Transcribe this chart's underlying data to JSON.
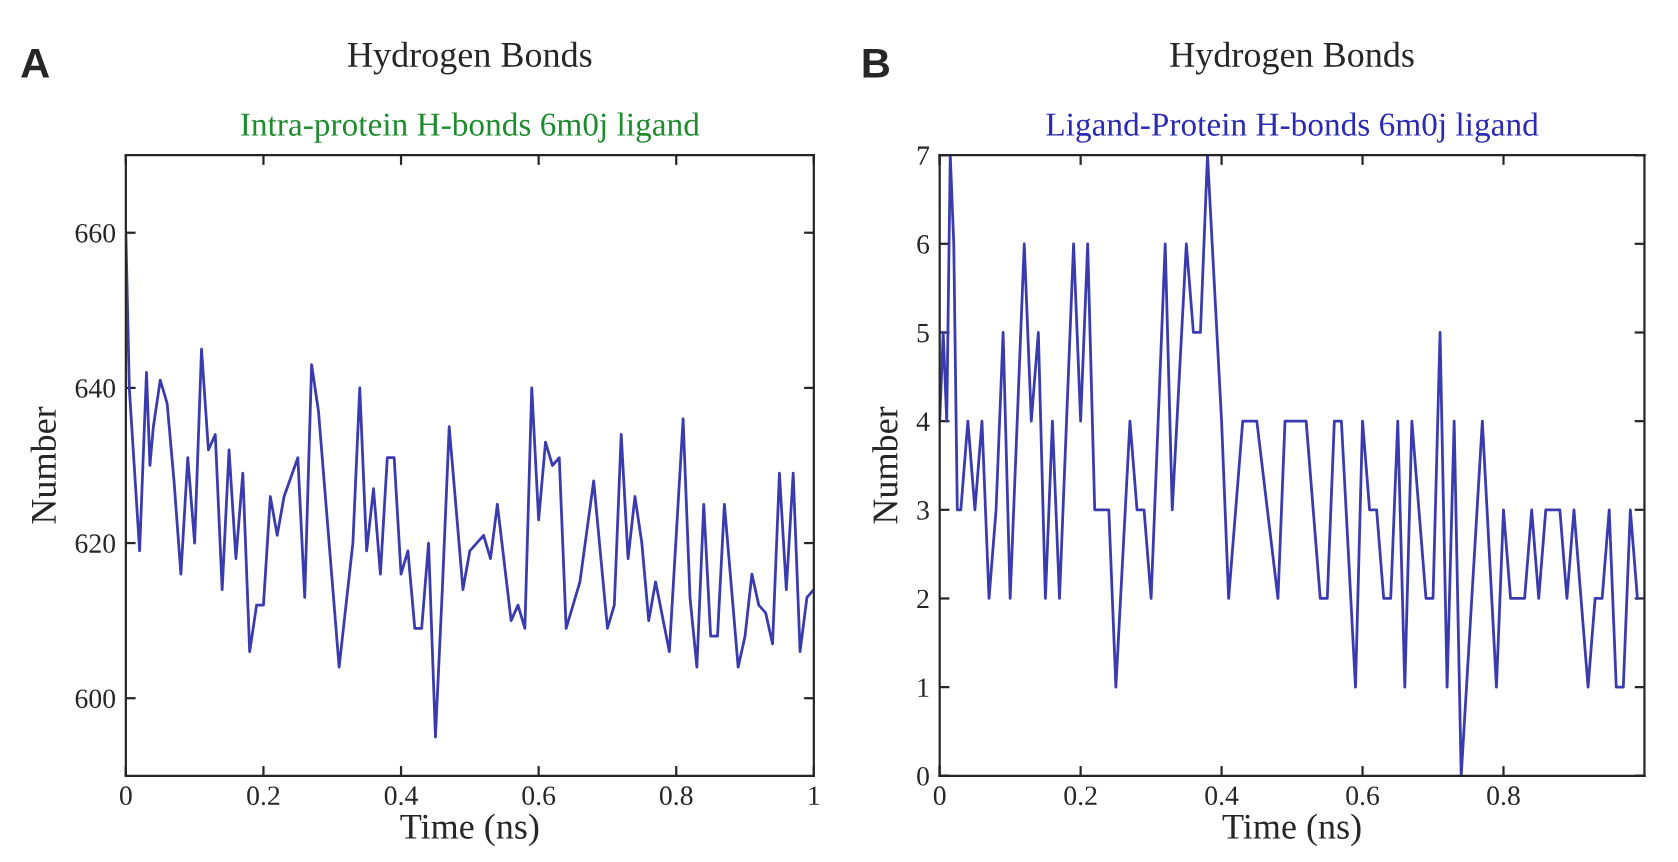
{
  "chart_data": [
    {
      "type": "line",
      "title": "Hydrogen Bonds",
      "subtitle": "Intra-protein H-bonds 6m0j ligand",
      "xlabel": "Time (ns)",
      "ylabel": "Number",
      "annotations": [
        "A"
      ],
      "xlim": [
        0,
        1
      ],
      "ylim": [
        590,
        670
      ],
      "xticks": [
        0,
        0.2,
        0.4,
        0.6,
        0.8,
        1
      ],
      "yticks": [
        600,
        620,
        640,
        660
      ],
      "grid": false,
      "legend": false,
      "series": [
        {
          "color": "#3b3bb0",
          "x": [
            0,
            0.005,
            0.015,
            0.02,
            0.03,
            0.035,
            0.04,
            0.05,
            0.06,
            0.07,
            0.08,
            0.09,
            0.1,
            0.11,
            0.12,
            0.13,
            0.14,
            0.15,
            0.16,
            0.17,
            0.18,
            0.19,
            0.2,
            0.21,
            0.22,
            0.23,
            0.25,
            0.26,
            0.27,
            0.28,
            0.31,
            0.33,
            0.34,
            0.35,
            0.36,
            0.37,
            0.38,
            0.39,
            0.4,
            0.41,
            0.42,
            0.43,
            0.44,
            0.45,
            0.46,
            0.47,
            0.49,
            0.5,
            0.52,
            0.53,
            0.54,
            0.56,
            0.57,
            0.58,
            0.59,
            0.6,
            0.61,
            0.62,
            0.63,
            0.64,
            0.66,
            0.68,
            0.7,
            0.71,
            0.72,
            0.73,
            0.74,
            0.75,
            0.76,
            0.77,
            0.79,
            0.81,
            0.82,
            0.83,
            0.84,
            0.85,
            0.86,
            0.87,
            0.89,
            0.9,
            0.91,
            0.92,
            0.93,
            0.94,
            0.95,
            0.96,
            0.97,
            0.98,
            0.99,
            1.0
          ],
          "values": [
            660,
            640,
            626,
            619,
            642,
            630,
            635,
            641,
            638,
            628,
            616,
            631,
            620,
            645,
            632,
            634,
            614,
            632,
            618,
            629,
            606,
            612,
            612,
            626,
            621,
            626,
            631,
            613,
            643,
            637,
            604,
            620,
            640,
            619,
            627,
            616,
            631,
            631,
            616,
            619,
            609,
            609,
            620,
            595,
            614,
            635,
            614,
            619,
            621,
            618,
            625,
            610,
            612,
            609,
            640,
            623,
            633,
            630,
            631,
            609,
            615,
            628,
            609,
            612,
            634,
            618,
            626,
            620,
            610,
            615,
            606,
            636,
            613,
            604,
            625,
            608,
            608,
            625,
            604,
            608,
            616,
            612,
            611,
            607,
            629,
            614,
            629,
            606,
            613,
            614
          ]
        }
      ]
    },
    {
      "type": "line",
      "title": "Hydrogen Bonds",
      "subtitle": "Ligand-Protein H-bonds 6m0j ligand",
      "xlabel": "Time (ns)",
      "ylabel": "Number",
      "annotations": [
        "B"
      ],
      "xlim": [
        0,
        1
      ],
      "ylim": [
        0,
        7
      ],
      "xticks": [
        0,
        0.2,
        0.4,
        0.6,
        0.8
      ],
      "yticks": [
        0,
        1,
        2,
        3,
        4,
        5,
        6,
        7
      ],
      "grid": false,
      "legend": false,
      "series": [
        {
          "color": "#3b3bb0",
          "x": [
            0,
            0.005,
            0.01,
            0.015,
            0.02,
            0.025,
            0.03,
            0.04,
            0.05,
            0.06,
            0.07,
            0.08,
            0.09,
            0.1,
            0.12,
            0.13,
            0.14,
            0.15,
            0.16,
            0.17,
            0.19,
            0.2,
            0.21,
            0.22,
            0.24,
            0.25,
            0.27,
            0.28,
            0.29,
            0.3,
            0.32,
            0.33,
            0.35,
            0.36,
            0.37,
            0.38,
            0.4,
            0.41,
            0.43,
            0.45,
            0.48,
            0.49,
            0.52,
            0.54,
            0.55,
            0.56,
            0.57,
            0.59,
            0.6,
            0.61,
            0.62,
            0.63,
            0.64,
            0.65,
            0.66,
            0.67,
            0.69,
            0.7,
            0.71,
            0.72,
            0.73,
            0.74,
            0.77,
            0.79,
            0.8,
            0.81,
            0.83,
            0.84,
            0.85,
            0.86,
            0.88,
            0.89,
            0.9,
            0.92,
            0.93,
            0.94,
            0.95,
            0.96,
            0.97,
            0.98,
            0.99
          ],
          "values": [
            4,
            5,
            4,
            7,
            6,
            3,
            3,
            4,
            3,
            4,
            2,
            3,
            5,
            2,
            6,
            4,
            5,
            2,
            4,
            2,
            6,
            4,
            6,
            3,
            3,
            1,
            4,
            3,
            3,
            2,
            6,
            3,
            6,
            5,
            5,
            7,
            4,
            2,
            4,
            4,
            2,
            4,
            4,
            2,
            2,
            4,
            4,
            1,
            4,
            3,
            3,
            2,
            2,
            4,
            1,
            4,
            2,
            2,
            5,
            1,
            4,
            0,
            4,
            1,
            3,
            2,
            2,
            3,
            2,
            3,
            3,
            2,
            3,
            1,
            2,
            2,
            3,
            1,
            1,
            3,
            2
          ]
        }
      ]
    }
  ]
}
